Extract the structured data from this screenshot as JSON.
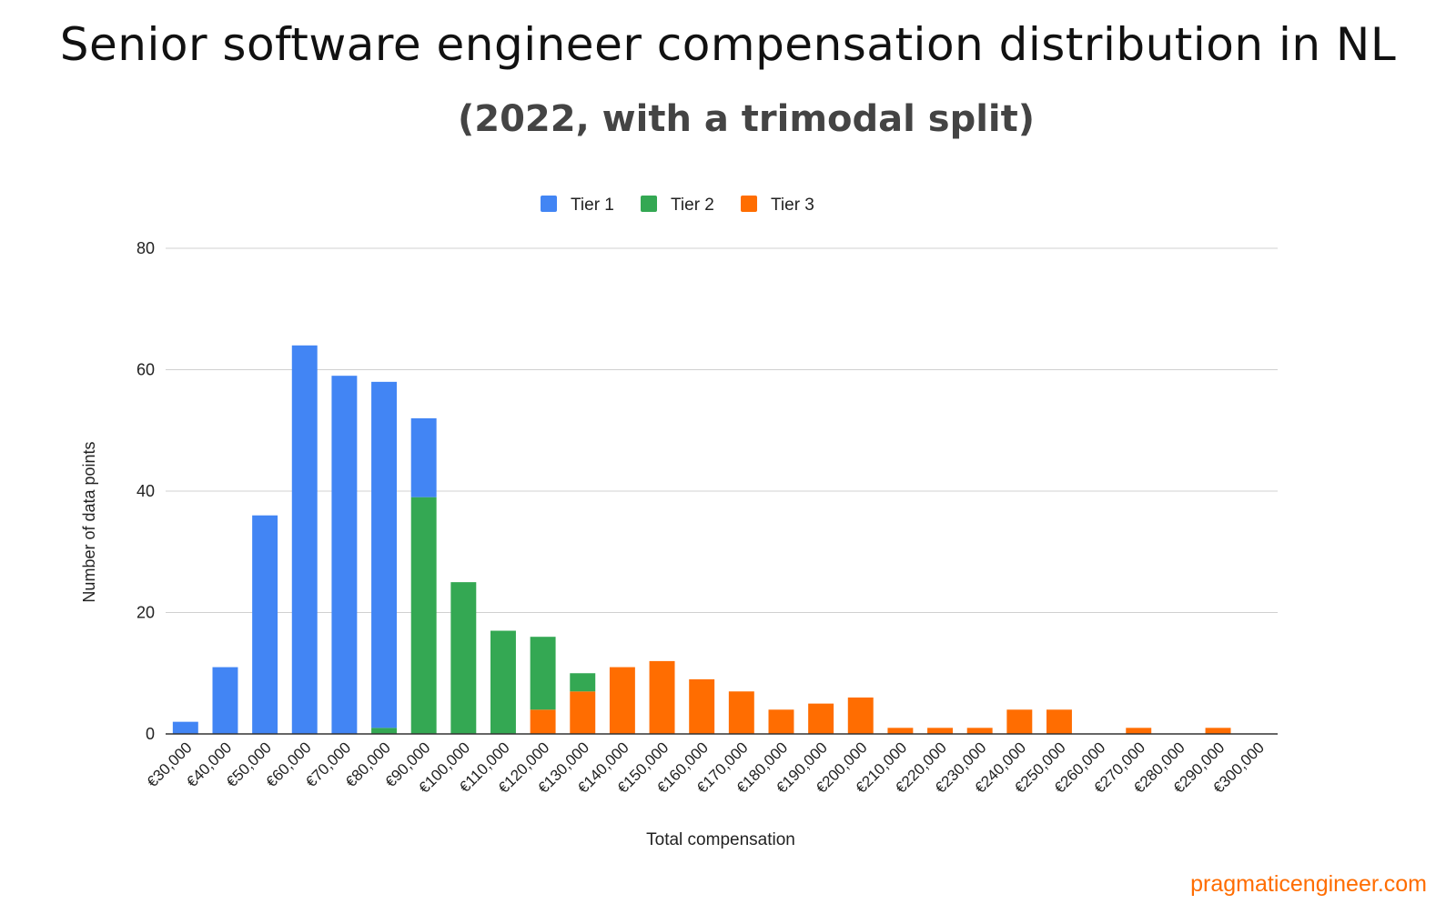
{
  "chart_data": {
    "type": "bar",
    "stacked": true,
    "title": "Senior software engineer compensation distribution in NL",
    "subtitle": "(2022, with a trimodal split)",
    "xlabel": "Total compensation",
    "ylabel": "Number of data points",
    "ylim": [
      0,
      80
    ],
    "yticks": [
      "0",
      "20",
      "40",
      "60",
      "80"
    ],
    "grid": true,
    "legend_position": "top",
    "categories": [
      "€30,000",
      "€40,000",
      "€50,000",
      "€60,000",
      "€70,000",
      "€80,000",
      "€90,000",
      "€100,000",
      "€110,000",
      "€120,000",
      "€130,000",
      "€140,000",
      "€150,000",
      "€160,000",
      "€170,000",
      "€180,000",
      "€190,000",
      "€200,000",
      "€210,000",
      "€220,000",
      "€230,000",
      "€240,000",
      "€250,000",
      "€260,000",
      "€270,000",
      "€280,000",
      "€290,000",
      "€300,000"
    ],
    "series": [
      {
        "name": "Tier 3",
        "color": "#ff6d01",
        "values": [
          0,
          0,
          0,
          0,
          0,
          0,
          0,
          0,
          0,
          4,
          7,
          11,
          12,
          9,
          7,
          4,
          5,
          6,
          1,
          1,
          1,
          4,
          4,
          0,
          1,
          0,
          1,
          0
        ]
      },
      {
        "name": "Tier 2",
        "color": "#34a853",
        "values": [
          0,
          0,
          0,
          0,
          0,
          1,
          39,
          25,
          17,
          12,
          3,
          0,
          0,
          0,
          0,
          0,
          0,
          0,
          0,
          0,
          0,
          0,
          0,
          0,
          0,
          0,
          0,
          0
        ]
      },
      {
        "name": "Tier 1",
        "color": "#4285f4",
        "values": [
          2,
          11,
          36,
          64,
          59,
          57,
          13,
          0,
          0,
          0,
          0,
          0,
          0,
          0,
          0,
          0,
          0,
          0,
          0,
          0,
          0,
          0,
          0,
          0,
          0,
          0,
          0,
          0
        ]
      }
    ],
    "legend": [
      {
        "name": "Tier 1",
        "color": "#4285f4"
      },
      {
        "name": "Tier 2",
        "color": "#34a853"
      },
      {
        "name": "Tier 3",
        "color": "#ff6d01"
      }
    ]
  },
  "credit": "pragmaticengineer.com"
}
